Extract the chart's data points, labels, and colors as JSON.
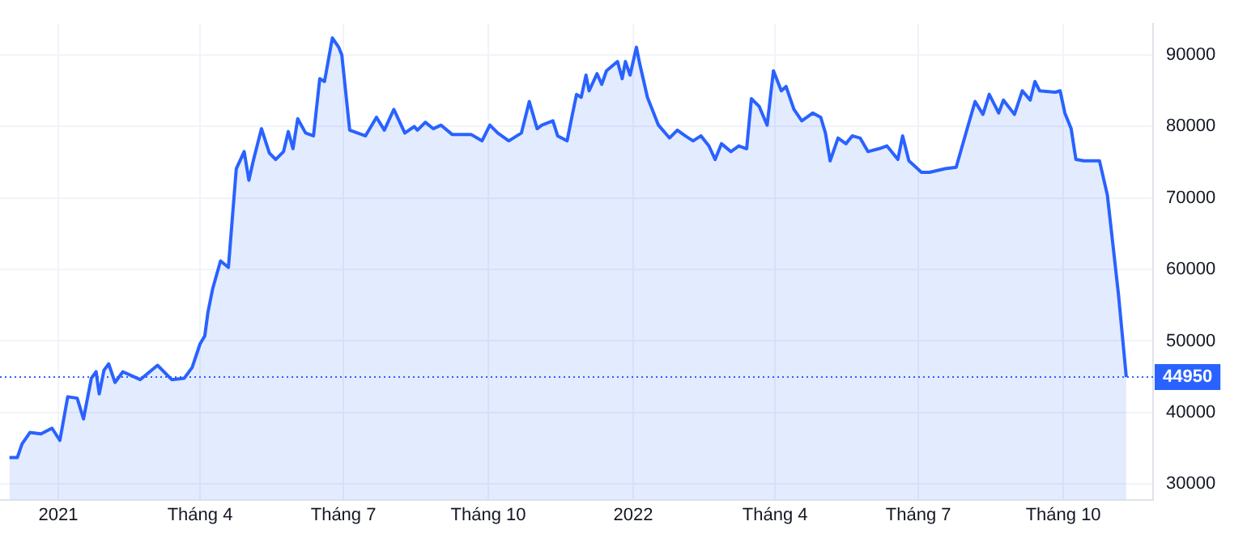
{
  "chart_data": {
    "type": "area",
    "x": [
      "2020-12-01",
      "2020-12-06",
      "2020-12-09",
      "2020-12-14",
      "2020-12-21",
      "2020-12-28",
      "2021-01-02",
      "2021-01-07",
      "2021-01-13",
      "2021-01-17",
      "2021-01-22",
      "2021-01-25",
      "2021-01-27",
      "2021-01-30",
      "2021-02-02",
      "2021-02-06",
      "2021-02-11",
      "2021-02-22",
      "2021-03-05",
      "2021-03-14",
      "2021-03-22",
      "2021-03-27",
      "2021-04-01",
      "2021-04-04",
      "2021-04-06",
      "2021-04-09",
      "2021-04-14",
      "2021-04-19",
      "2021-04-24",
      "2021-04-29",
      "2021-05-02",
      "2021-05-05",
      "2021-05-10",
      "2021-05-15",
      "2021-05-19",
      "2021-05-24",
      "2021-05-27",
      "2021-05-30",
      "2021-06-02",
      "2021-06-07",
      "2021-06-12",
      "2021-06-16",
      "2021-06-19",
      "2021-06-24",
      "2021-06-28",
      "2021-06-30",
      "2021-07-05",
      "2021-07-10",
      "2021-07-15",
      "2021-07-22",
      "2021-07-27",
      "2021-08-02",
      "2021-08-09",
      "2021-08-15",
      "2021-08-17",
      "2021-08-22",
      "2021-08-27",
      "2021-09-01",
      "2021-09-08",
      "2021-09-20",
      "2021-09-27",
      "2021-10-02",
      "2021-10-07",
      "2021-10-14",
      "2021-10-22",
      "2021-10-27",
      "2021-11-01",
      "2021-11-04",
      "2021-11-11",
      "2021-11-14",
      "2021-11-20",
      "2021-11-23",
      "2021-11-26",
      "2021-11-29",
      "2021-12-02",
      "2021-12-04",
      "2021-12-09",
      "2021-12-12",
      "2021-12-15",
      "2021-12-22",
      "2021-12-25",
      "2021-12-27",
      "2021-12-30",
      "2022-01-03",
      "2022-01-05",
      "2022-01-10",
      "2022-01-17",
      "2022-01-24",
      "2022-01-29",
      "2022-02-03",
      "2022-02-08",
      "2022-02-13",
      "2022-02-18",
      "2022-02-22",
      "2022-02-26",
      "2022-03-04",
      "2022-03-09",
      "2022-03-14",
      "2022-03-17",
      "2022-03-22",
      "2022-03-27",
      "2022-03-31",
      "2022-04-05",
      "2022-04-08",
      "2022-04-13",
      "2022-04-18",
      "2022-04-25",
      "2022-04-30",
      "2022-05-03",
      "2022-05-06",
      "2022-05-11",
      "2022-05-16",
      "2022-05-20",
      "2022-05-25",
      "2022-05-30",
      "2022-06-06",
      "2022-06-11",
      "2022-06-18",
      "2022-06-21",
      "2022-06-25",
      "2022-07-03",
      "2022-07-08",
      "2022-07-18",
      "2022-07-25",
      "2022-08-01",
      "2022-08-06",
      "2022-08-11",
      "2022-08-15",
      "2022-08-21",
      "2022-08-24",
      "2022-08-31",
      "2022-09-05",
      "2022-09-10",
      "2022-09-13",
      "2022-09-16",
      "2022-09-26",
      "2022-09-29",
      "2022-10-02",
      "2022-10-06",
      "2022-10-09",
      "2022-10-14",
      "2022-10-24",
      "2022-10-29",
      "2022-11-05",
      "2022-11-10"
    ],
    "series": [
      {
        "color": "#2962ff",
        "values": [
          33700,
          33700,
          35600,
          37200,
          37000,
          37800,
          36100,
          42200,
          42000,
          39100,
          44800,
          45700,
          42600,
          45900,
          46800,
          44200,
          45700,
          44600,
          46600,
          44600,
          44800,
          46300,
          49600,
          50700,
          54000,
          57300,
          61200,
          60300,
          74100,
          76500,
          72500,
          75400,
          79700,
          76300,
          75400,
          76500,
          79300,
          76900,
          81100,
          79100,
          78700,
          86700,
          86300,
          92400,
          91100,
          90000,
          79500,
          79100,
          78700,
          81300,
          79500,
          82400,
          79100,
          80000,
          79500,
          80600,
          79700,
          80200,
          78900,
          78900,
          78000,
          80200,
          79100,
          78000,
          79100,
          83500,
          79700,
          80200,
          80800,
          78700,
          78000,
          81300,
          84500,
          84100,
          87200,
          85000,
          87400,
          85900,
          87800,
          89100,
          86700,
          89100,
          87200,
          91100,
          88900,
          84100,
          80200,
          78400,
          79500,
          78700,
          78000,
          78700,
          77300,
          75400,
          77600,
          76500,
          77300,
          76900,
          83900,
          82800,
          80200,
          87800,
          85000,
          85600,
          82400,
          80800,
          81900,
          81300,
          79100,
          75200,
          78400,
          77600,
          78700,
          78400,
          76500,
          76900,
          77300,
          75400,
          78700,
          75200,
          73600,
          73600,
          74100,
          74300,
          79700,
          83500,
          81700,
          84500,
          81900,
          83700,
          81700,
          85000,
          83700,
          86300,
          85000,
          84800,
          85000,
          81900,
          79700,
          75400,
          75200,
          75200,
          70400,
          56600,
          44950
        ]
      }
    ],
    "xlim": [
      "2020-11-25",
      "2022-11-27"
    ],
    "xticks": [
      {
        "value": "2021-01-01",
        "label": "2021"
      },
      {
        "value": "2021-04-01",
        "label": "Tháng 4"
      },
      {
        "value": "2021-07-01",
        "label": "Tháng 7"
      },
      {
        "value": "2021-10-01",
        "label": "Tháng 10"
      },
      {
        "value": "2022-01-01",
        "label": "2022"
      },
      {
        "value": "2022-04-01",
        "label": "Tháng 4"
      },
      {
        "value": "2022-07-01",
        "label": "Tháng 7"
      },
      {
        "value": "2022-10-01",
        "label": "Tháng 10"
      }
    ],
    "ylim": [
      27800,
      94400
    ],
    "yticks": [
      30000,
      40000,
      50000,
      60000,
      70000,
      80000,
      90000
    ],
    "grid": true,
    "ref_lines": [
      {
        "axis": "y",
        "value": 44950,
        "label": "44950",
        "color": "#2962ff",
        "line_style": "dotted"
      }
    ]
  }
}
